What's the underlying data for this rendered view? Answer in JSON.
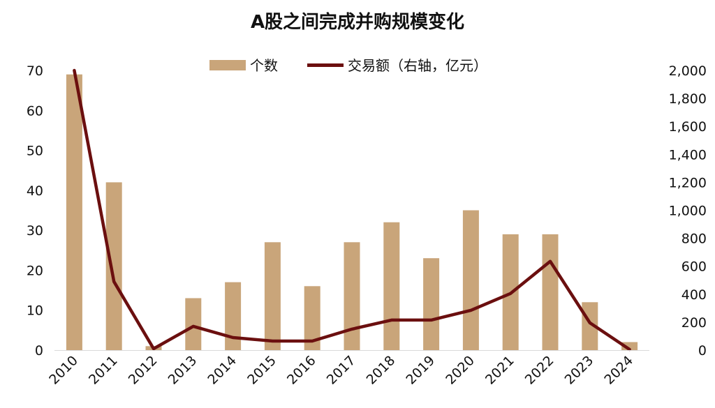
{
  "chart_data": {
    "type": "bar",
    "title": "A股之间完成并购规模变化",
    "categories": [
      "2010",
      "2011",
      "2012",
      "2013",
      "2014",
      "2015",
      "2016",
      "2017",
      "2018",
      "2019",
      "2020",
      "2021",
      "2022",
      "2023",
      "2024"
    ],
    "series": [
      {
        "name": "个数",
        "type": "bar",
        "axis": "left",
        "color": "#C9A57A",
        "values": [
          69,
          42,
          1,
          13,
          17,
          27,
          16,
          27,
          32,
          23,
          35,
          29,
          29,
          12,
          2
        ]
      },
      {
        "name": "交易额（右轴，亿元）",
        "type": "line",
        "axis": "right",
        "color": "#6B0F0F",
        "values": [
          2000,
          490,
          10,
          170,
          90,
          65,
          65,
          150,
          215,
          215,
          285,
          405,
          635,
          195,
          5
        ]
      }
    ],
    "y_left": {
      "min": 0,
      "max": 70,
      "ticks": [
        "0",
        "10",
        "20",
        "30",
        "40",
        "50",
        "60",
        "70"
      ]
    },
    "y_right": {
      "min": 0,
      "max": 2000,
      "ticks": [
        "0",
        "200",
        "400",
        "600",
        "800",
        "1,000",
        "1,200",
        "1,400",
        "1,600",
        "1,800",
        "2,000"
      ]
    },
    "legend_position": "top-center",
    "grid": false
  }
}
